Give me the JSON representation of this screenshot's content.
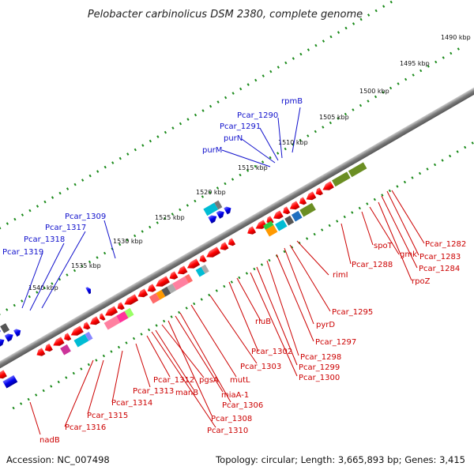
{
  "title": "Pelobacter carbinolicus DSM 2380, complete genome",
  "footer": {
    "accession": "Accession: NC_007498",
    "topology": "Topology: circular; Length: 3,665,893 bp; Genes: 3,415"
  },
  "scale_labels": [
    "1490 kbp",
    "1495 kbp",
    "1500 kbp",
    "1505 kbp",
    "1510 kbp",
    "1515 kbp",
    "1520 kbp",
    "1525 kbp",
    "1530 kbp",
    "1535 kbp",
    "1540 kbp"
  ],
  "upper_strand_labels": [
    "Pcar_1319",
    "Pcar_1318",
    "Pcar_1317",
    "Pcar_1309",
    "purM",
    "purN",
    "Pcar_1291",
    "Pcar_1290",
    "rpmB"
  ],
  "lower_strand_labels": [
    "nadB",
    "Pcar_1316",
    "Pcar_1315",
    "Pcar_1314",
    "Pcar_1313",
    "Pcar_1312",
    "manB",
    "pgsA",
    "Pcar_1310",
    "Pcar_1308",
    "miaA-1",
    "Pcar_1306",
    "mutL",
    "Pcar_1303",
    "Pcar_1302",
    "rluB",
    "Pcar_1300",
    "Pcar_1299",
    "Pcar_1298",
    "Pcar_1297",
    "pyrD",
    "Pcar_1295",
    "rimI",
    "Pcar_1288",
    "spoT",
    "gmk",
    "rpoZ",
    "Pcar_1284",
    "Pcar_1283",
    "Pcar_1282"
  ],
  "colors": {
    "forward_label": "#1010cc",
    "reverse_label": "#cc0000",
    "backbone": "#888888",
    "tick": "#1a8a1a"
  }
}
